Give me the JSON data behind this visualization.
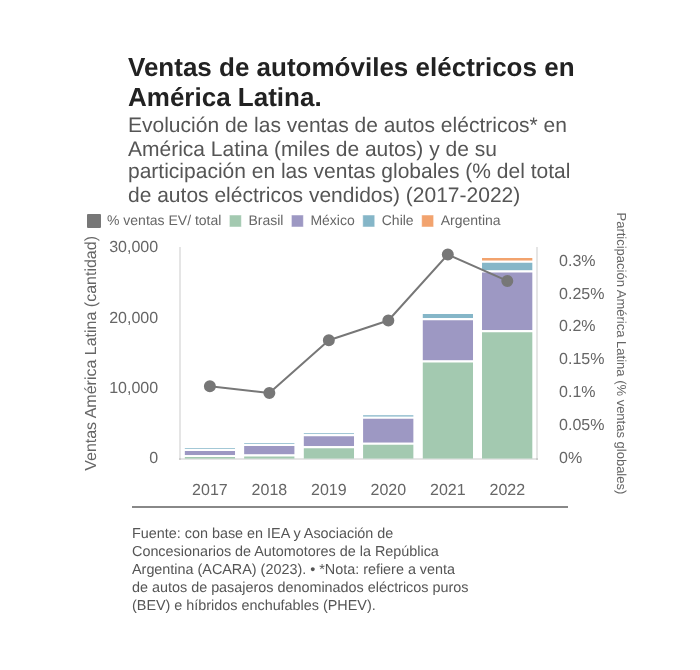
{
  "chart_data": {
    "type": "bar",
    "stacked": true,
    "title": "Ventas de automóviles eléctricos en América Latina.",
    "subtitle": "Evolución de las ventas de autos eléctricos* en América Latina (miles de autos) y de su participación en las ventas globales (% del total de autos eléctricos vendidos) (2017-2022)",
    "ylabel": "Ventas América Latina (cantidad)",
    "y2label": "Participación América Latina (% ventas globales)",
    "categories": [
      "2017",
      "2018",
      "2019",
      "2020",
      "2021",
      "2022"
    ],
    "series": [
      {
        "name": "% ventas EV/ total",
        "type": "line",
        "axis": "y2",
        "color": "#777777",
        "values": [
          0.11,
          0.1,
          0.18,
          0.21,
          0.31,
          0.27
        ]
      },
      {
        "name": "Brasil",
        "color": "#a3c9b0",
        "values": [
          500,
          600,
          1800,
          2300,
          14000,
          18300
        ]
      },
      {
        "name": "México",
        "color": "#9d98c3",
        "values": [
          900,
          1500,
          1700,
          3700,
          6000,
          8500
        ]
      },
      {
        "name": "Chile",
        "color": "#85b6c8",
        "values": [
          200,
          200,
          300,
          400,
          900,
          1400
        ]
      },
      {
        "name": "Argentina",
        "color": "#f2a36e",
        "values": [
          0,
          0,
          0,
          0,
          0,
          650
        ]
      }
    ],
    "ylim": [
      0,
      30000
    ],
    "yticks": [
      0,
      {
        "value": 10000,
        "label": "10,000"
      },
      {
        "value": 20000,
        "label": "20,000"
      },
      {
        "value": 30000,
        "label": "30,000"
      }
    ],
    "y2lim": [
      0,
      0.32
    ],
    "y2ticks": [
      {
        "value": 0,
        "label": "0%"
      },
      {
        "value": 0.05,
        "label": "0.05%"
      },
      {
        "value": 0.1,
        "label": "0.1%"
      },
      {
        "value": 0.15,
        "label": "0.15%"
      },
      {
        "value": 0.2,
        "label": "0.2%"
      },
      {
        "value": 0.25,
        "label": "0.25%"
      },
      {
        "value": 0.3,
        "label": "0.3%"
      }
    ],
    "legend": "top",
    "grid": false,
    "marker": "circle",
    "annotations": [
      "Fuente: con base en IEA y Asociación de Concesionarios de Automotores de la República Argentina (ACARA) (2023). • *Nota: refiere a venta de autos de pasajeros denominados eléctricos puros (BEV) e híbridos enchufables (PHEV)."
    ]
  }
}
